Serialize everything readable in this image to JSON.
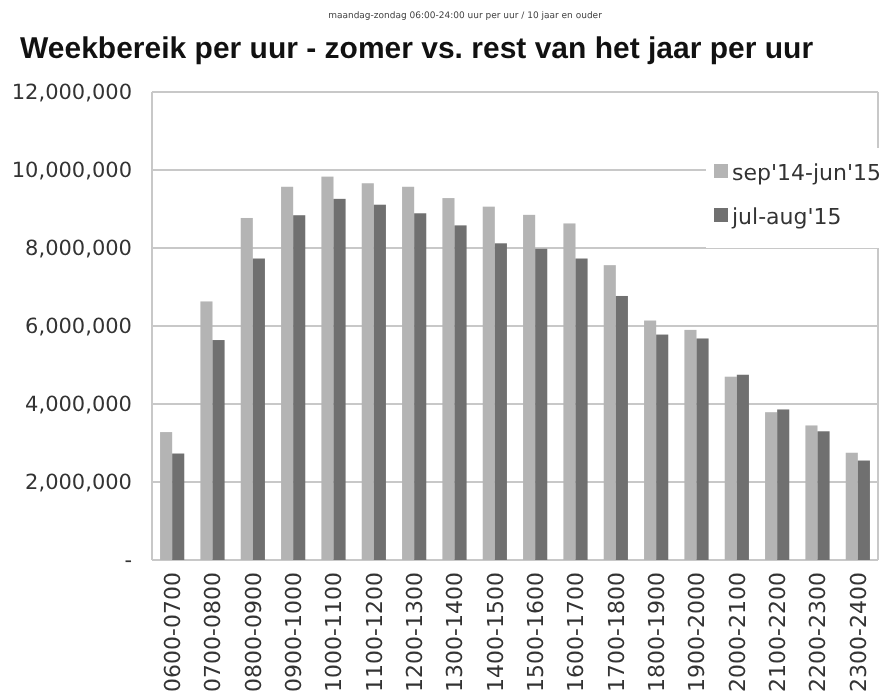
{
  "chart_data": {
    "type": "bar",
    "title": "Weekbereik per uur - zomer vs. rest van het jaar per uur",
    "subtitle": "maandag-zondag 06:00-24:00 uur per uur / 10 jaar en ouder",
    "categories": [
      "0600-0700",
      "0700-0800",
      "0800-0900",
      "0900-1000",
      "1000-1100",
      "1100-1200",
      "1200-1300",
      "1300-1400",
      "1400-1500",
      "1500-1600",
      "1600-1700",
      "1700-1800",
      "1800-1900",
      "1900-2000",
      "2000-2100",
      "2100-2200",
      "2200-2300",
      "2300-2400"
    ],
    "series": [
      {
        "name": "sep'14-jun'15",
        "color": "#b4b4b4",
        "values": [
          3280000,
          6630000,
          8770000,
          9570000,
          9830000,
          9660000,
          9570000,
          9280000,
          9060000,
          8850000,
          8630000,
          7560000,
          6140000,
          5900000,
          4700000,
          3790000,
          3450000,
          2750000
        ]
      },
      {
        "name": "jul-aug'15",
        "color": "#707070",
        "values": [
          2730000,
          5640000,
          7730000,
          8840000,
          9260000,
          9110000,
          8890000,
          8580000,
          8120000,
          7980000,
          7730000,
          6770000,
          5780000,
          5680000,
          4750000,
          3860000,
          3300000,
          2550000
        ]
      }
    ],
    "ylim": [
      0,
      12000000
    ],
    "yticks": [
      {
        "value": 0,
        "label": "-"
      },
      {
        "value": 2000000,
        "label": "2,000,000"
      },
      {
        "value": 4000000,
        "label": "4,000,000"
      },
      {
        "value": 6000000,
        "label": "6,000,000"
      },
      {
        "value": 8000000,
        "label": "8,000,000"
      },
      {
        "value": 10000000,
        "label": "10,000,000"
      },
      {
        "value": 12000000,
        "label": "12,000,000"
      }
    ],
    "grid": "y",
    "legend": "top right"
  }
}
